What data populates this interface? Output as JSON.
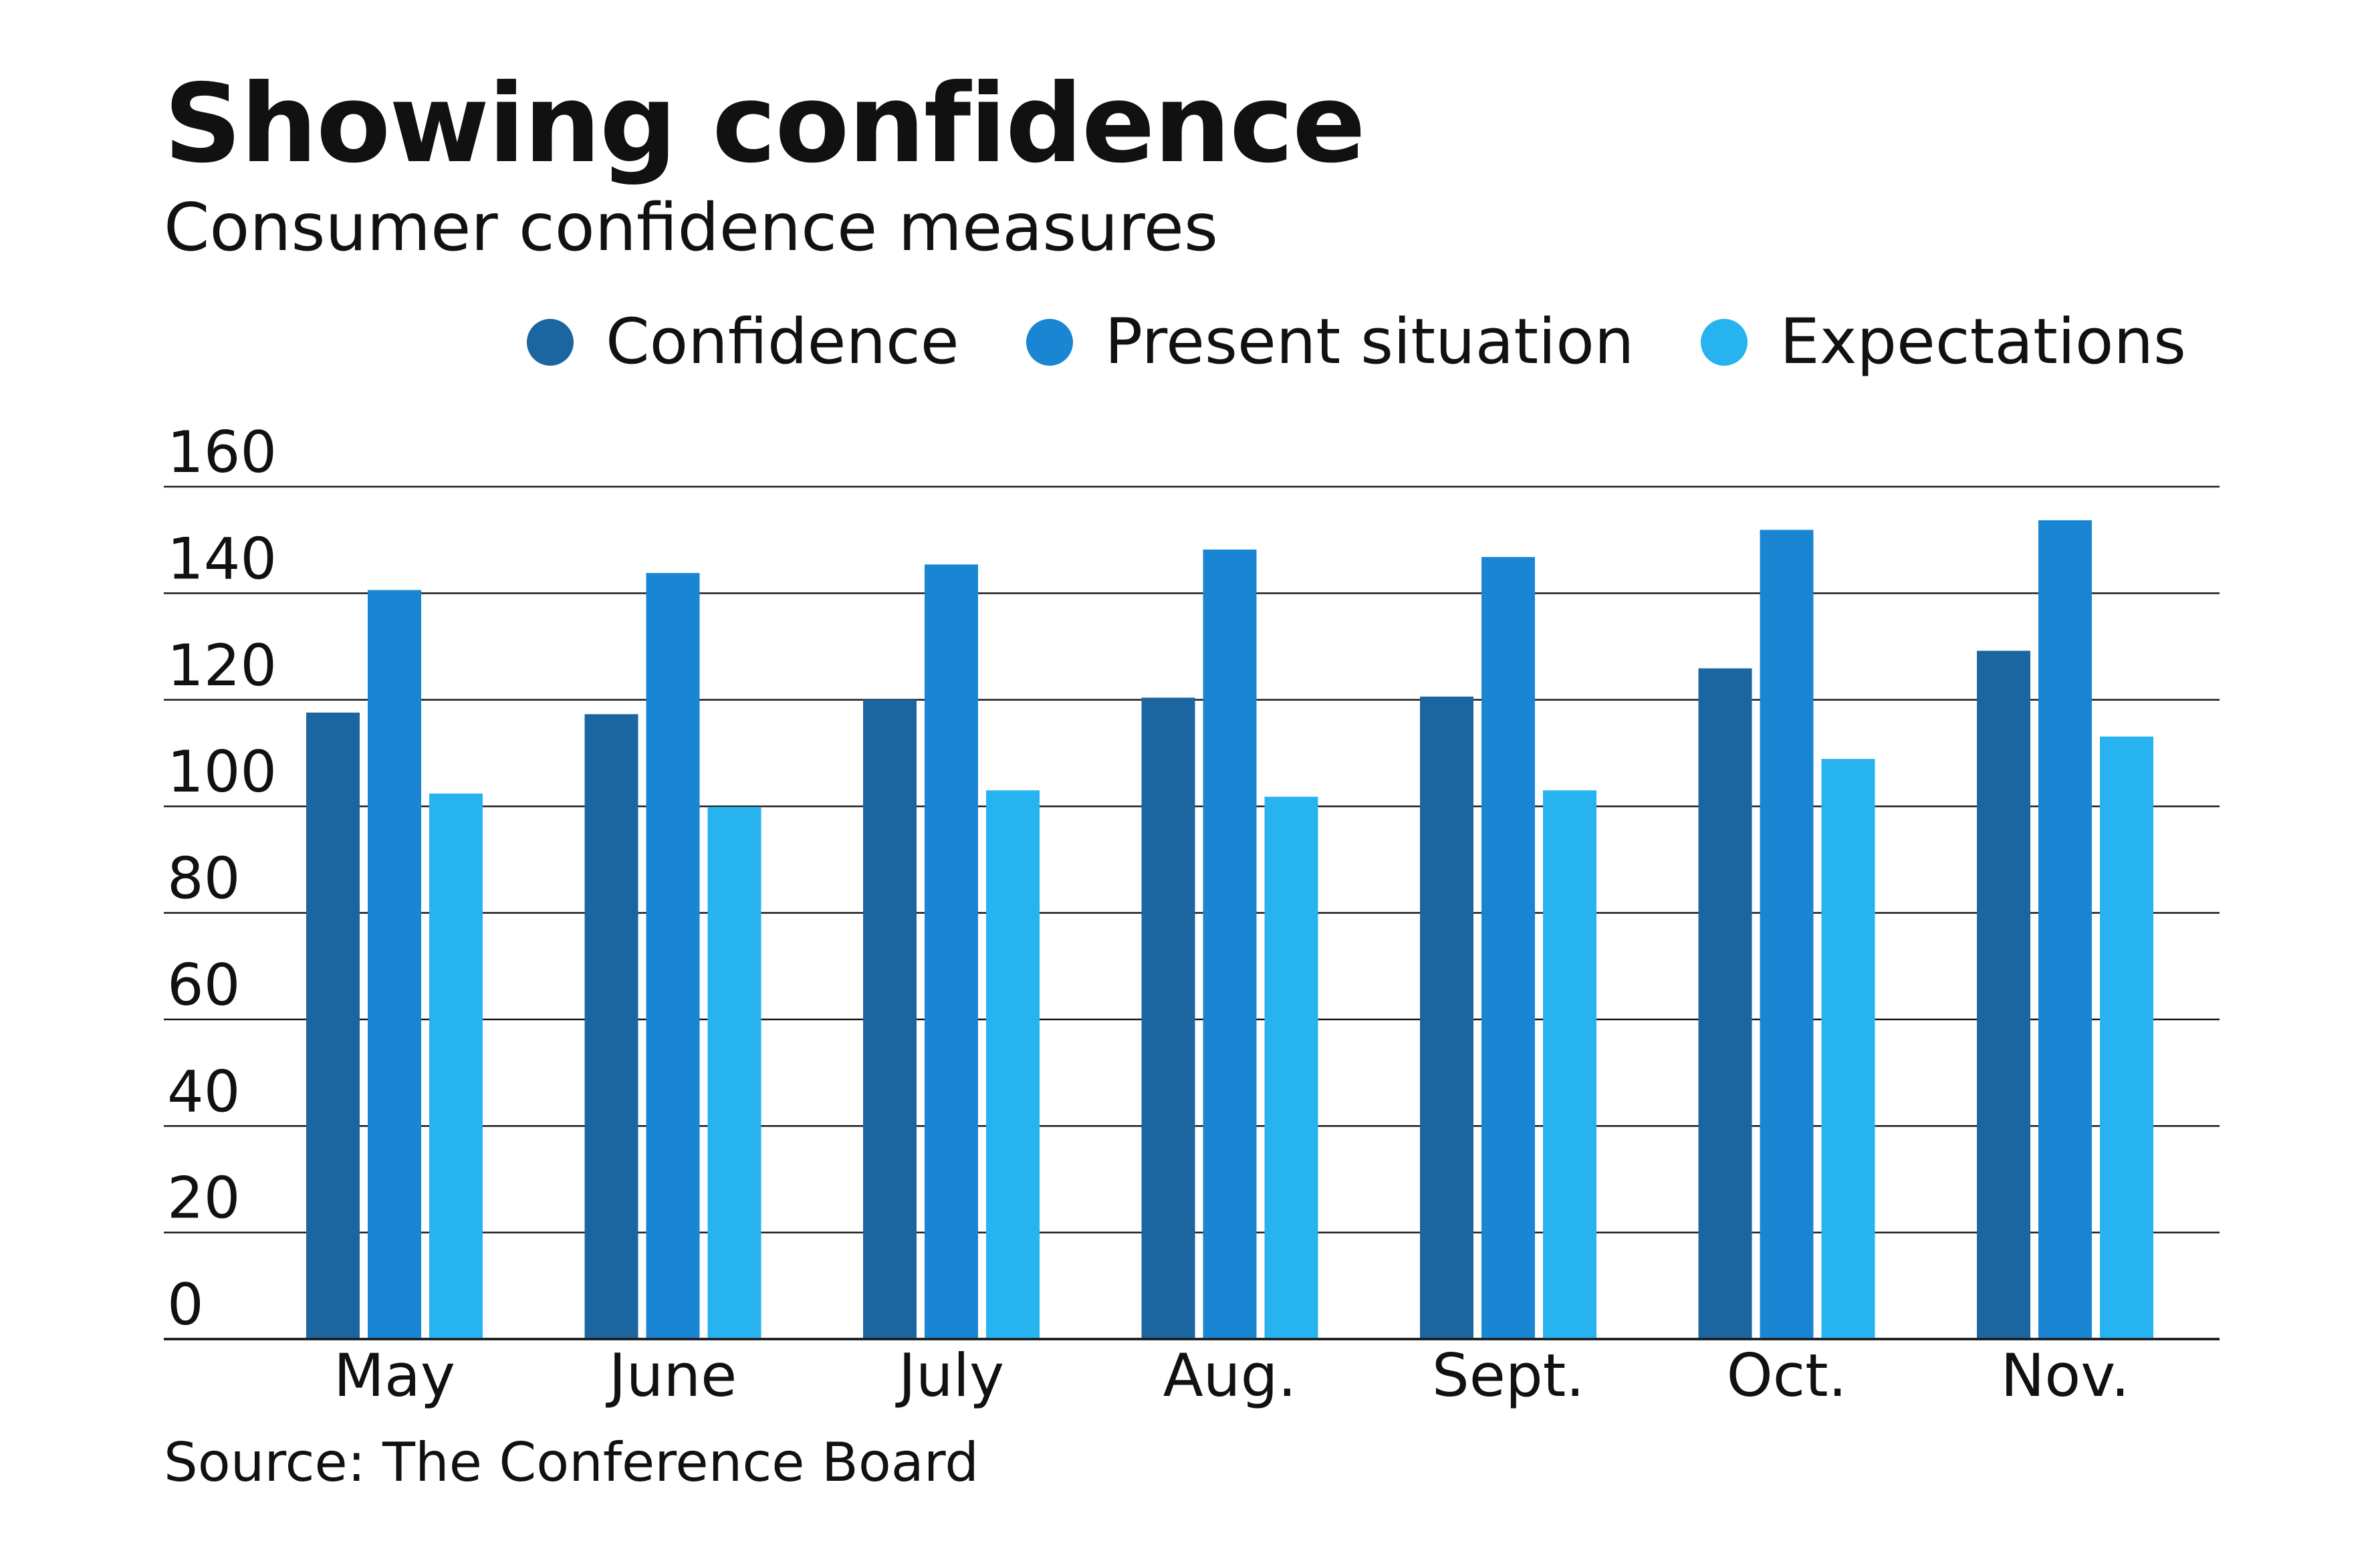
{
  "chart_data": {
    "type": "bar",
    "title": "Showing confidence",
    "subtitle": "Consumer confidence measures",
    "source": "Source: The Conference Board",
    "categories": [
      "May",
      "June",
      "July",
      "Aug.",
      "Sept.",
      "Oct.",
      "Nov."
    ],
    "series": [
      {
        "name": "Confidence",
        "color": "#1b66a0",
        "values": [
          117.6,
          117.3,
          120.0,
          120.4,
          120.6,
          125.9,
          129.2
        ]
      },
      {
        "name": "Present situation",
        "color": "#1a86d3",
        "values": [
          140.6,
          143.8,
          145.4,
          148.2,
          146.8,
          151.9,
          153.7
        ]
      },
      {
        "name": "Expectations",
        "color": "#26b3ef",
        "values": [
          102.4,
          99.9,
          103.0,
          101.8,
          103.0,
          108.9,
          113.1
        ]
      }
    ],
    "ylim": [
      0,
      160
    ],
    "yticks": [
      "0",
      "20",
      "40",
      "60",
      "80",
      "100",
      "120",
      "140",
      "160"
    ],
    "ytick_values": [
      0,
      20,
      40,
      60,
      80,
      100,
      120,
      140,
      160
    ],
    "grid": true,
    "legend": "top-right"
  }
}
